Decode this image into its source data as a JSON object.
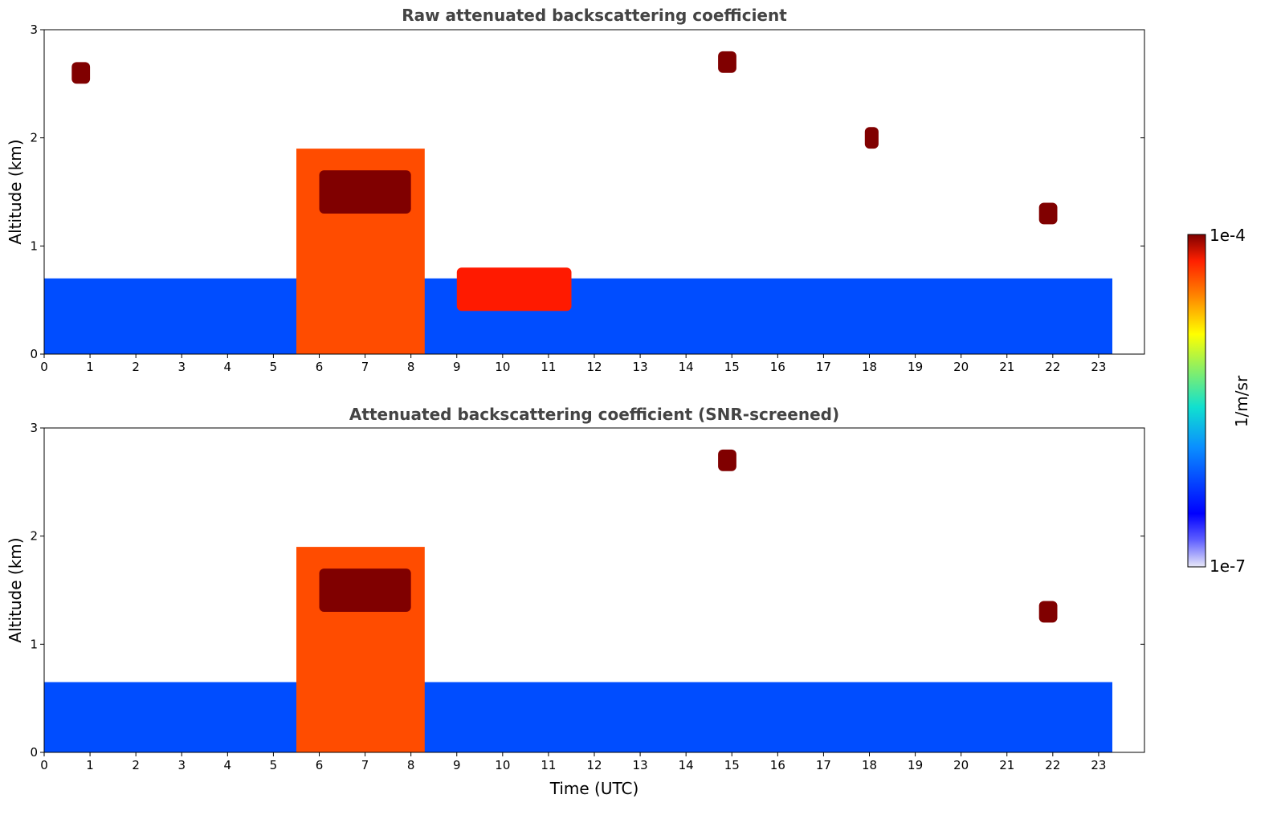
{
  "chart_data": [
    {
      "type": "heatmap",
      "title": "Raw attenuated backscattering coefficient",
      "xlabel": "",
      "ylabel": "Altitude (km)",
      "xlim": [
        0,
        24
      ],
      "ylim": [
        0,
        3
      ],
      "xticks": [
        "0",
        "1",
        "2",
        "3",
        "4",
        "5",
        "6",
        "7",
        "8",
        "9",
        "10",
        "11",
        "12",
        "13",
        "14",
        "15",
        "16",
        "17",
        "18",
        "19",
        "20",
        "21",
        "22",
        "23"
      ],
      "yticks": [
        "0",
        "1",
        "2",
        "3"
      ],
      "data_extent_hours": [
        0,
        23.3
      ],
      "colorscale": "jet (log)",
      "features": [
        {
          "name": "boundary layer",
          "x": [
            0,
            23.3
          ],
          "y": [
            0,
            0.7
          ],
          "level": 0.2
        },
        {
          "name": "thick cloud",
          "x": [
            5.5,
            8.3
          ],
          "y": [
            0,
            1.9
          ],
          "level": 0.8
        },
        {
          "name": "cloud core",
          "x": [
            6.0,
            8.0
          ],
          "y": [
            1.3,
            1.7
          ],
          "level": 1.0
        },
        {
          "name": "cloud",
          "x": [
            0.6,
            1.0
          ],
          "y": [
            2.5,
            2.7
          ],
          "level": 1.0
        },
        {
          "name": "cloud",
          "x": [
            14.7,
            15.1
          ],
          "y": [
            2.6,
            2.8
          ],
          "level": 1.0
        },
        {
          "name": "cloud",
          "x": [
            21.7,
            22.1
          ],
          "y": [
            1.2,
            1.4
          ],
          "level": 1.0
        },
        {
          "name": "cloud",
          "x": [
            17.9,
            18.2
          ],
          "y": [
            1.9,
            2.1
          ],
          "level": 1.0
        },
        {
          "name": "drizzle band",
          "x": [
            9.0,
            11.5
          ],
          "y": [
            0.4,
            0.8
          ],
          "level": 0.85
        }
      ]
    },
    {
      "type": "heatmap",
      "title": "Attenuated backscattering coefficient (SNR-screened)",
      "xlabel": "Time (UTC)",
      "ylabel": "Altitude (km)",
      "xlim": [
        0,
        24
      ],
      "ylim": [
        0,
        3
      ],
      "xticks": [
        "0",
        "1",
        "2",
        "3",
        "4",
        "5",
        "6",
        "7",
        "8",
        "9",
        "10",
        "11",
        "12",
        "13",
        "14",
        "15",
        "16",
        "17",
        "18",
        "19",
        "20",
        "21",
        "22",
        "23"
      ],
      "yticks": [
        "0",
        "1",
        "2",
        "3"
      ],
      "data_extent_hours": [
        0,
        23.3
      ],
      "colorscale": "jet (log)",
      "features": [
        {
          "name": "boundary layer",
          "x": [
            0,
            23.3
          ],
          "y": [
            0,
            0.65
          ],
          "level": 0.2
        },
        {
          "name": "thick cloud",
          "x": [
            5.5,
            8.3
          ],
          "y": [
            0,
            1.9
          ],
          "level": 0.8
        },
        {
          "name": "cloud core",
          "x": [
            6.0,
            8.0
          ],
          "y": [
            1.3,
            1.7
          ],
          "level": 1.0
        },
        {
          "name": "cloud",
          "x": [
            21.7,
            22.1
          ],
          "y": [
            1.2,
            1.4
          ],
          "level": 1.0
        },
        {
          "name": "cloud",
          "x": [
            14.7,
            15.1
          ],
          "y": [
            2.6,
            2.8
          ],
          "level": 1.0
        }
      ]
    }
  ],
  "colorbar": {
    "max_label": "1e-4",
    "min_label": "1e-7",
    "unit_label": "1/m/sr",
    "scale": "log"
  },
  "colors": {
    "title": "#444444",
    "low": "#0000ff",
    "high": "#8b0000"
  }
}
